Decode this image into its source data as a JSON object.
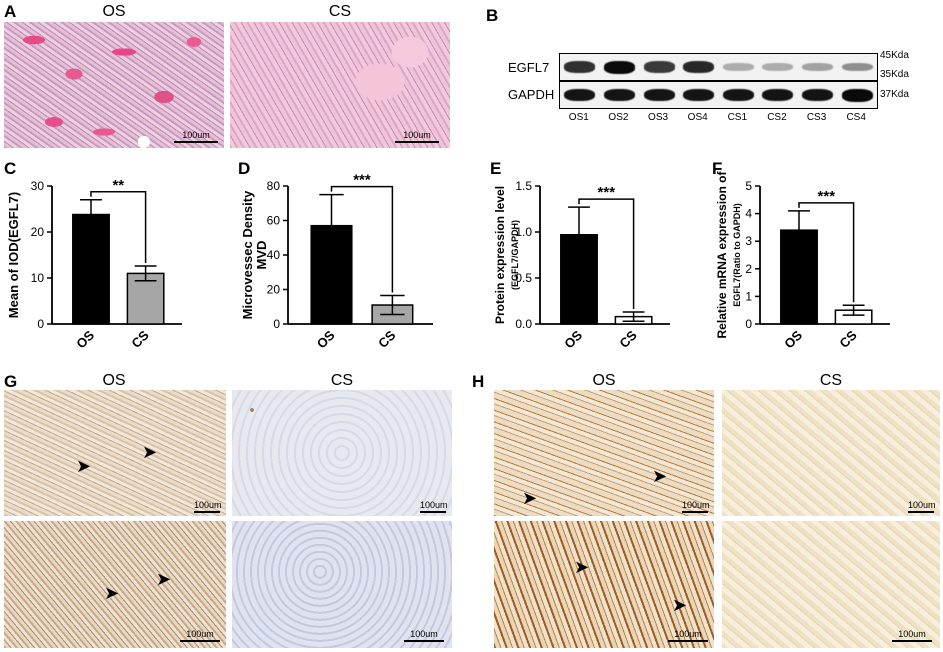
{
  "panels": {
    "A": {
      "label": "A",
      "headers": [
        "OS",
        "CS"
      ],
      "scale": [
        "100um",
        "100um"
      ]
    },
    "B": {
      "label": "B",
      "rows": [
        {
          "label": "EGFL7",
          "band_intensity": [
            0.8,
            1.0,
            0.75,
            0.85,
            0.15,
            0.15,
            0.2,
            0.3
          ]
        },
        {
          "label": "GAPDH",
          "band_intensity": [
            0.95,
            0.95,
            0.95,
            0.95,
            0.95,
            0.95,
            0.95,
            1.0
          ]
        }
      ],
      "lanes": [
        "OS1",
        "OS2",
        "OS3",
        "OS4",
        "CS1",
        "CS2",
        "CS3",
        "CS4"
      ],
      "markers": [
        "45Kda",
        "35Kda",
        "37Kda"
      ]
    },
    "G": {
      "label": "G",
      "headers": [
        "OS",
        "CS"
      ],
      "scale": [
        "100um",
        "100um",
        "100um",
        "100um"
      ]
    },
    "H": {
      "label": "H",
      "headers": [
        "OS",
        "CS"
      ],
      "scale": [
        "100um",
        "100um",
        "100um",
        "100um"
      ]
    }
  },
  "chart_data": [
    {
      "panel": "C",
      "type": "bar",
      "categories": [
        "OS",
        "CS"
      ],
      "values": [
        23.8,
        11.0
      ],
      "errors": [
        3.2,
        1.6
      ],
      "bar_colors": [
        "#000000",
        "#a6a6a6"
      ],
      "ylabel": "Mean of IOD(EGFL7)",
      "ylim": [
        0,
        30
      ],
      "yticks": [
        0,
        10,
        20,
        30
      ],
      "significance": "**"
    },
    {
      "panel": "D",
      "type": "bar",
      "categories": [
        "OS",
        "CS"
      ],
      "values": [
        57,
        11
      ],
      "errors": [
        18,
        5.5
      ],
      "bar_colors": [
        "#000000",
        "#a6a6a6"
      ],
      "ylabel": "Microvessec Density\nMVD",
      "ylim": [
        0,
        80
      ],
      "yticks": [
        0,
        20,
        40,
        60,
        80
      ],
      "significance": "***"
    },
    {
      "panel": "E",
      "type": "bar",
      "categories": [
        "OS",
        "CS"
      ],
      "values": [
        0.97,
        0.08
      ],
      "errors": [
        0.3,
        0.05
      ],
      "bar_colors": [
        "#000000",
        "#ffffff"
      ],
      "ylabel": "Protein expression level",
      "ylabel2": "(EGFL7/GAPDH)",
      "ylim": [
        0,
        1.5
      ],
      "yticks": [
        "0.0",
        "0.5",
        "1.0",
        "1.5"
      ],
      "significance": "***"
    },
    {
      "panel": "F",
      "type": "bar",
      "categories": [
        "OS",
        "CS"
      ],
      "values": [
        3.4,
        0.5
      ],
      "errors": [
        0.7,
        0.18
      ],
      "bar_colors": [
        "#000000",
        "#ffffff"
      ],
      "ylabel": "Relative mRNA expression of",
      "ylabel2": "EGFL7(Ratio to GAPDH)",
      "ylim": [
        0,
        5
      ],
      "yticks": [
        "0",
        "1",
        "2",
        "3",
        "4",
        "5"
      ],
      "significance": "***"
    }
  ]
}
